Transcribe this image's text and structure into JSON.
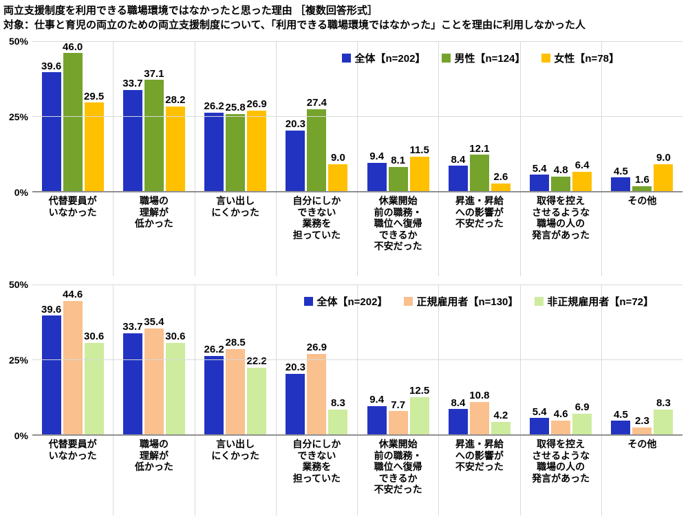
{
  "header": {
    "title": "両立支援制度を利用できる職場環境ではなかったと思った理由 ［複数回答形式］",
    "subtitle": "対象：仕事と育児の両立のための両立支援制度について、「利用できる職場環境ではなかった」ことを理由に利用しなかった人"
  },
  "axis": {
    "ticks": [
      "50%",
      "25%",
      "0%"
    ],
    "ymax": 50
  },
  "chart_data": [
    {
      "type": "bar",
      "title": "",
      "xlabel": "",
      "ylabel": "",
      "ylim": [
        0,
        50
      ],
      "grid": "horizontal",
      "legend_position": "top-right-inside",
      "categories": [
        "代替要員が\nいなかった",
        "職場の\n理解が\n低かった",
        "言い出し\nにくかった",
        "自分にしか\nできない\n業務を\n担っていた",
        "休業開始\n前の職務・\n職位へ復帰\nできるか\n不安だった",
        "昇進・昇給\nへの影響が\n不安だった",
        "取得を控え\nさせるような\n職場の人の\n発言があった",
        "その他"
      ],
      "series": [
        {
          "name": "全体【n=202】",
          "color": "#2233c2",
          "values": [
            39.6,
            33.7,
            26.2,
            20.3,
            9.4,
            8.4,
            5.4,
            4.5
          ]
        },
        {
          "name": "男性【n=124】",
          "color": "#76a32b",
          "values": [
            46.0,
            37.1,
            25.8,
            27.4,
            8.1,
            12.1,
            4.8,
            1.6
          ]
        },
        {
          "name": "女性【n=78】",
          "color": "#ffc000",
          "values": [
            29.5,
            28.2,
            26.9,
            9.0,
            11.5,
            2.6,
            6.4,
            9.0
          ]
        }
      ]
    },
    {
      "type": "bar",
      "title": "",
      "xlabel": "",
      "ylabel": "",
      "ylim": [
        0,
        50
      ],
      "grid": "horizontal",
      "legend_position": "top-right-inside",
      "categories": [
        "代替要員が\nいなかった",
        "職場の\n理解が\n低かった",
        "言い出し\nにくかった",
        "自分にしか\nできない\n業務を\n担っていた",
        "休業開始\n前の職務・\n職位へ復帰\nできるか\n不安だった",
        "昇進・昇給\nへの影響が\n不安だった",
        "取得を控え\nさせるような\n職場の人の\n発言があった",
        "その他"
      ],
      "series": [
        {
          "name": "全体【n=202】",
          "color": "#2233c2",
          "values": [
            39.6,
            33.7,
            26.2,
            20.3,
            9.4,
            8.4,
            5.4,
            4.5
          ]
        },
        {
          "name": "正規雇用者【n=130】",
          "color": "#fac08e",
          "values": [
            44.6,
            35.4,
            28.5,
            26.9,
            7.7,
            10.8,
            4.6,
            2.3
          ]
        },
        {
          "name": "非正規雇用者【n=72】",
          "color": "#cdec9e",
          "values": [
            30.6,
            30.6,
            22.2,
            8.3,
            12.5,
            4.2,
            6.9,
            8.3
          ]
        }
      ]
    }
  ]
}
